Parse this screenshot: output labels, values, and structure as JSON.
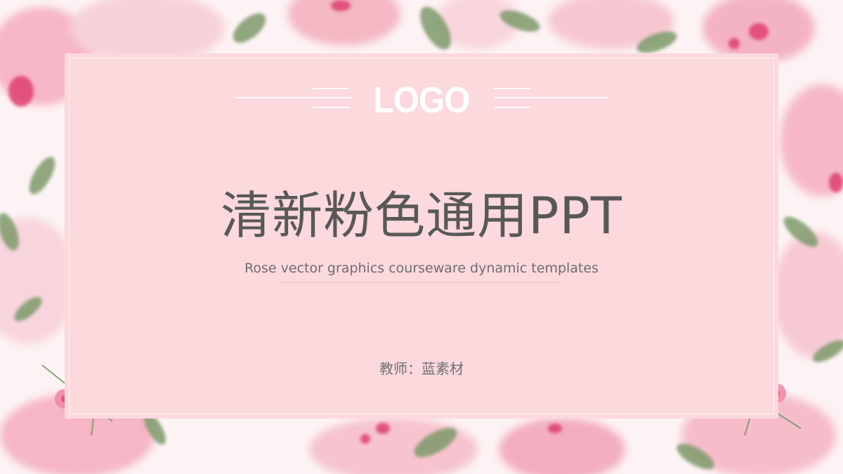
{
  "slide": {
    "logo": "LOGO",
    "title": "清新粉色通用PPT",
    "subtitle": "Rose vector graphics courseware dynamic templates",
    "teacher": "教师：蓝素材"
  },
  "colors": {
    "card_background": "#fbd9dc",
    "title_text": "#585858",
    "subtitle_text": "#6e6e6e",
    "rose_pink": "#f4a7b9",
    "rose_deep": "#e0466f",
    "leaf_green": "#6f8f5e"
  }
}
